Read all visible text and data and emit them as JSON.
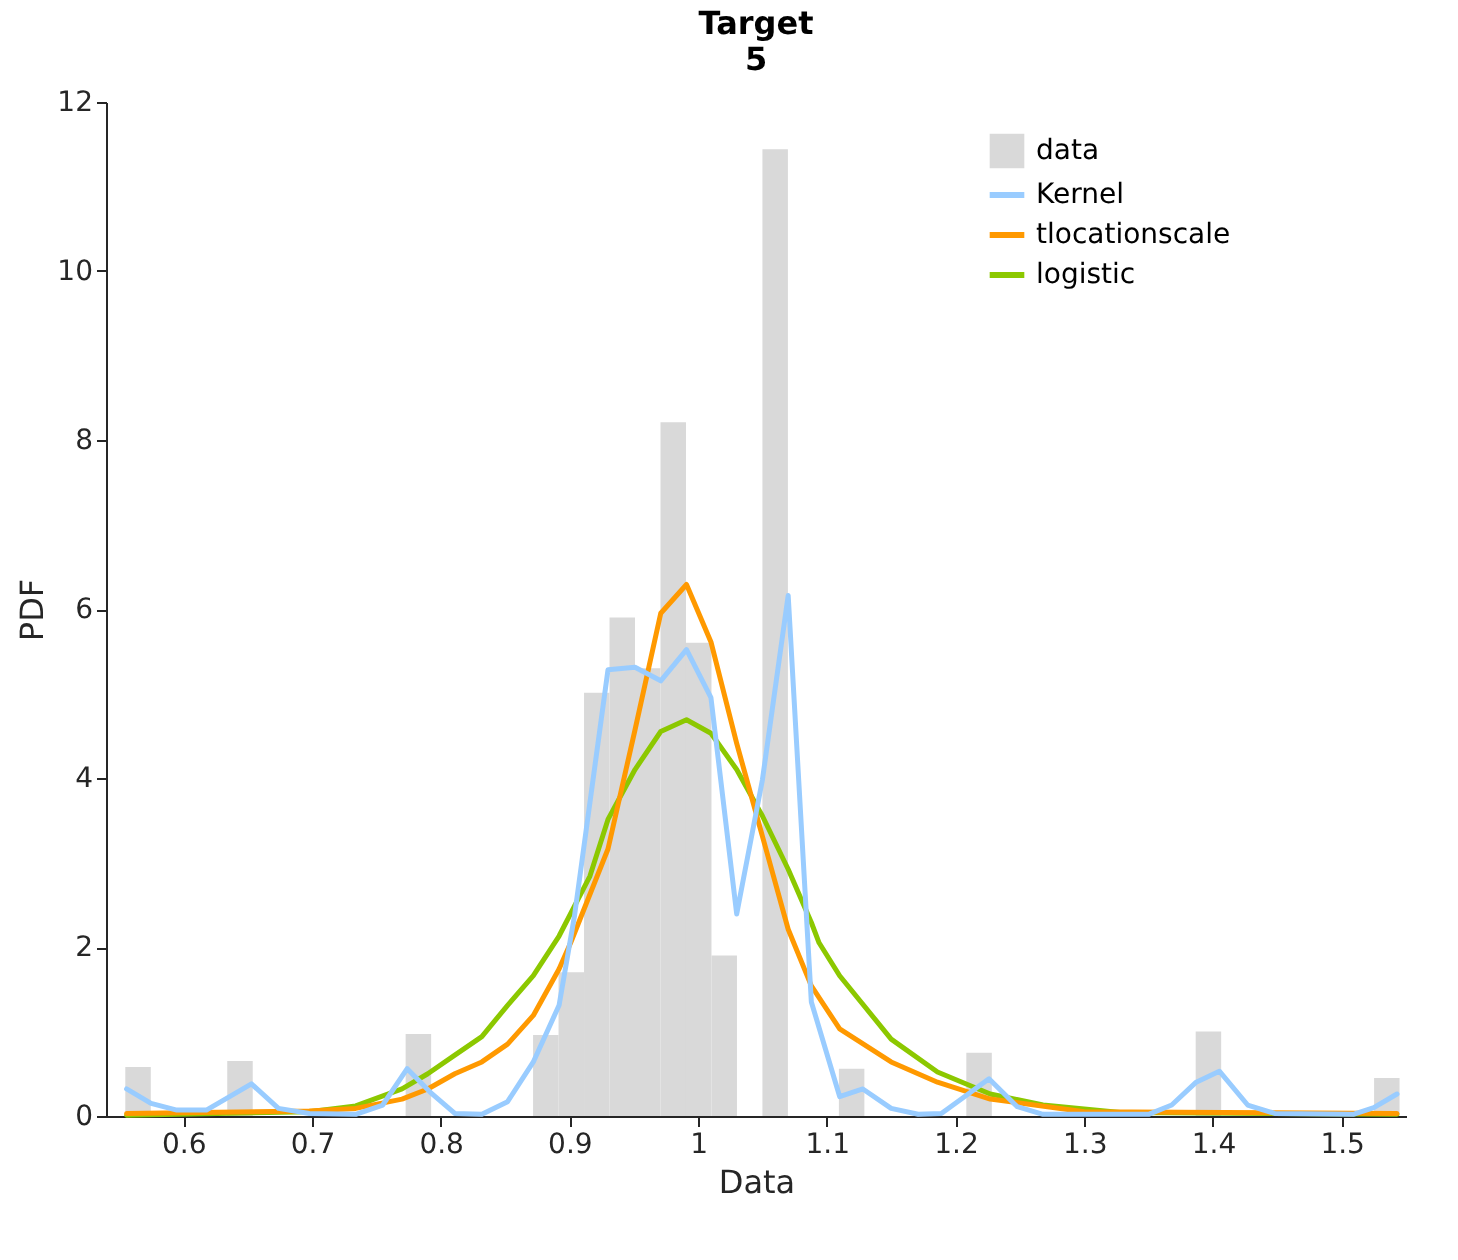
{
  "chart_data": {
    "type": "histogram",
    "title": "Target\n5",
    "xlabel": "Data",
    "ylabel": "PDF",
    "xlim": [
      0.54,
      1.55
    ],
    "ylim": [
      0,
      12
    ],
    "xticks": [
      0.6,
      0.7,
      0.8,
      0.9,
      1,
      1.1,
      1.2,
      1.3,
      1.4,
      1.5
    ],
    "yticks": [
      0,
      2,
      4,
      6,
      8,
      10,
      12
    ],
    "grid": false,
    "legend": "top right",
    "line_style": "solid",
    "marker": "none",
    "series": [
      {
        "name": "data",
        "color": "#d9d9d9",
        "bins": [
          0.555,
          0.5748,
          0.5946,
          0.6144,
          0.6342,
          0.654,
          0.6738,
          0.6936,
          0.7134,
          0.7332,
          0.753,
          0.7728,
          0.7926,
          0.8124,
          0.8322,
          0.852,
          0.8718,
          0.8916,
          0.9114,
          0.9312,
          0.951,
          0.9708,
          0.9906,
          1.0104,
          1.0302,
          1.05,
          1.0698,
          1.0896,
          1.1094,
          1.1292,
          1.149,
          1.1688,
          1.1886,
          1.2084,
          1.2282,
          1.248,
          1.2678,
          1.2876,
          1.3074,
          1.3272,
          1.347,
          1.3668,
          1.3866,
          1.4064,
          1.4262,
          1.446,
          1.4658,
          1.4856,
          1.5054,
          1.5252,
          1.545
        ],
        "values": [
          0.58,
          0,
          0,
          0,
          0.65,
          0,
          0,
          0,
          0,
          0,
          0,
          0.97,
          0,
          0,
          0,
          0,
          0.96,
          1.7,
          5.01,
          5.9,
          5.3,
          8.21,
          5.6,
          1.9,
          0,
          11.44,
          0,
          0,
          0.56,
          0,
          0,
          0,
          0,
          0.75,
          0,
          0,
          0,
          0,
          0,
          0,
          0,
          0,
          1.0,
          0,
          0,
          0,
          0,
          0,
          0,
          0.45
        ]
      },
      {
        "name": "Kernel",
        "type": "line",
        "color": "#99ccff",
        "x": [
          0.556,
          0.575,
          0.595,
          0.618,
          0.653,
          0.674,
          0.698,
          0.734,
          0.755,
          0.774,
          0.792,
          0.811,
          0.832,
          0.852,
          0.872,
          0.892,
          0.904,
          0.93,
          0.951,
          0.971,
          0.991,
          1.01,
          1.03,
          1.05,
          1.07,
          1.088,
          1.11,
          1.128,
          1.15,
          1.171,
          1.189,
          1.208,
          1.226,
          1.248,
          1.268,
          1.35,
          1.368,
          1.387,
          1.405,
          1.427,
          1.448,
          1.509,
          1.525,
          1.543
        ],
        "values": [
          0.32,
          0.15,
          0.07,
          0.07,
          0.38,
          0.09,
          0.03,
          0.02,
          0.13,
          0.56,
          0.28,
          0.03,
          0.02,
          0.17,
          0.64,
          1.31,
          2.37,
          5.28,
          5.31,
          5.15,
          5.52,
          4.95,
          2.39,
          3.98,
          6.16,
          1.35,
          0.23,
          0.32,
          0.09,
          0.02,
          0.03,
          0.24,
          0.44,
          0.11,
          0.02,
          0.02,
          0.13,
          0.4,
          0.53,
          0.13,
          0.03,
          0.02,
          0.1,
          0.26
        ]
      },
      {
        "name": "tlocationscale",
        "type": "line",
        "color": "#ff9900",
        "x": [
          0.556,
          0.698,
          0.734,
          0.77,
          0.79,
          0.811,
          0.832,
          0.852,
          0.872,
          0.892,
          0.901,
          0.93,
          0.951,
          0.971,
          0.991,
          1.01,
          1.03,
          1.05,
          1.07,
          1.088,
          1.11,
          1.15,
          1.186,
          1.227,
          1.3,
          1.543
        ],
        "values": [
          0.03,
          0.06,
          0.09,
          0.2,
          0.32,
          0.5,
          0.64,
          0.85,
          1.19,
          1.74,
          2.05,
          3.16,
          4.57,
          5.95,
          6.29,
          5.61,
          4.41,
          3.31,
          2.21,
          1.54,
          1.03,
          0.64,
          0.4,
          0.2,
          0.05,
          0.03
        ]
      },
      {
        "name": "logistic",
        "type": "line",
        "color": "#8cc800",
        "x": [
          0.556,
          0.698,
          0.734,
          0.77,
          0.79,
          0.811,
          0.832,
          0.852,
          0.872,
          0.892,
          0.916,
          0.93,
          0.951,
          0.971,
          0.991,
          1.01,
          1.03,
          1.05,
          1.07,
          1.088,
          1.094,
          1.11,
          1.15,
          1.186,
          1.227,
          1.268,
          1.33,
          1.543
        ],
        "values": [
          0.01,
          0.05,
          0.12,
          0.32,
          0.5,
          0.72,
          0.94,
          1.31,
          1.66,
          2.13,
          2.84,
          3.51,
          4.1,
          4.55,
          4.69,
          4.53,
          4.1,
          3.55,
          2.92,
          2.29,
          2.05,
          1.66,
          0.91,
          0.52,
          0.26,
          0.13,
          0.04,
          0.02
        ]
      }
    ]
  }
}
